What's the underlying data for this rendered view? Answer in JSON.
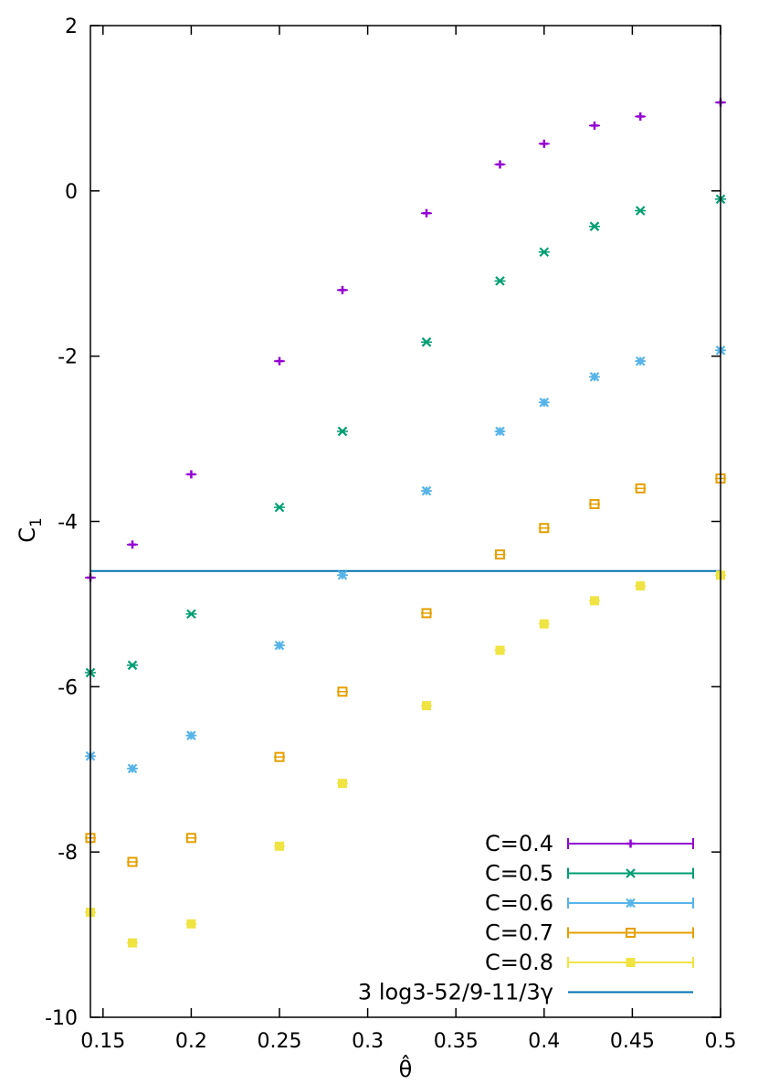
{
  "chart_data": {
    "type": "scatter",
    "title": "",
    "xlabel": "θ̂",
    "ylabel": "C",
    "ylabel_sub": "1",
    "xlim": [
      0.142857,
      0.5
    ],
    "ylim": [
      -10,
      2
    ],
    "xticks": [
      0.15,
      0.2,
      0.25,
      0.3,
      0.35,
      0.4,
      0.45,
      0.5
    ],
    "xtick_labels": [
      "0.15",
      "0.2",
      "0.25",
      "0.3",
      "0.35",
      "0.4",
      "0.45",
      "0.5"
    ],
    "yticks": [
      -10,
      -8,
      -6,
      -4,
      -2,
      0,
      2
    ],
    "ytick_labels": [
      "-10",
      "-8",
      "-6",
      "-4",
      "-2",
      "0",
      "2"
    ],
    "grid": false,
    "legend_position": "bottom-right",
    "x": [
      0.142857,
      0.166667,
      0.2,
      0.25,
      0.285714,
      0.333333,
      0.375,
      0.4,
      0.428571,
      0.454545,
      0.5
    ],
    "series": [
      {
        "name": "C=0.4",
        "color": "#9400d3",
        "marker": "plus",
        "values": [
          -4.68,
          -4.28,
          -3.43,
          -2.06,
          -1.2,
          -0.27,
          0.32,
          0.57,
          0.79,
          0.9,
          1.07
        ]
      },
      {
        "name": "C=0.5",
        "color": "#009e73",
        "marker": "cross",
        "values": [
          -5.83,
          -5.74,
          -5.12,
          -3.83,
          -2.91,
          -1.83,
          -1.09,
          -0.74,
          -0.43,
          -0.24,
          -0.1
        ]
      },
      {
        "name": "C=0.6",
        "color": "#56b4e9",
        "marker": "star",
        "values": [
          -6.84,
          -6.99,
          -6.59,
          -5.5,
          -4.65,
          -3.63,
          -2.91,
          -2.56,
          -2.25,
          -2.06,
          -1.93
        ]
      },
      {
        "name": "C=0.7",
        "color": "#e69f00",
        "marker": "open-square",
        "values": [
          -7.83,
          -8.12,
          -7.83,
          -6.85,
          -6.06,
          -5.11,
          -4.4,
          -4.08,
          -3.79,
          -3.6,
          -3.48
        ]
      },
      {
        "name": "C=0.8",
        "color": "#f0e442",
        "marker": "filled-square",
        "values": [
          -8.73,
          -9.1,
          -8.87,
          -7.93,
          -7.17,
          -6.23,
          -5.56,
          -5.24,
          -4.96,
          -4.78,
          -4.65
        ]
      }
    ],
    "reference_line": {
      "name": "3 log3-52/9-11/3γ",
      "color": "#0072b2",
      "value": -4.6
    }
  }
}
